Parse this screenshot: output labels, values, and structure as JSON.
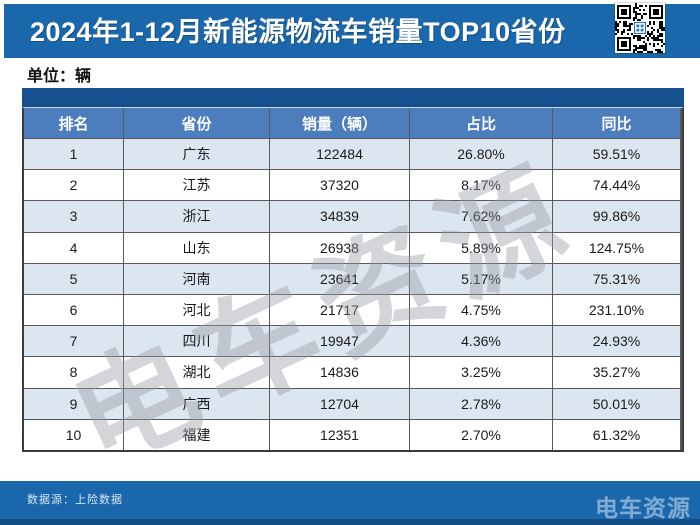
{
  "title_bar": {
    "title": "2024年1-12月新能源物流车销量TOP10省份",
    "qr_icon": "qr-code"
  },
  "unit_label": "单位：辆",
  "chart_data": {
    "type": "table",
    "title": "2024年1-12月新能源物流车销量TOP10省份",
    "unit": "辆",
    "columns": [
      "排名",
      "省份",
      "销量（辆）",
      "占比",
      "同比"
    ],
    "rows": [
      [
        "1",
        "广东",
        "122484",
        "26.80%",
        "59.51%"
      ],
      [
        "2",
        "江苏",
        "37320",
        "8.17%",
        "74.44%"
      ],
      [
        "3",
        "浙江",
        "34839",
        "7.62%",
        "99.86%"
      ],
      [
        "4",
        "山东",
        "26938",
        "5.89%",
        "124.75%"
      ],
      [
        "5",
        "河南",
        "23641",
        "5.17%",
        "75.31%"
      ],
      [
        "6",
        "河北",
        "21717",
        "4.75%",
        "231.10%"
      ],
      [
        "7",
        "四川",
        "19947",
        "4.36%",
        "24.93%"
      ],
      [
        "8",
        "湖北",
        "14836",
        "3.25%",
        "35.27%"
      ],
      [
        "9",
        "广西",
        "12704",
        "2.78%",
        "50.01%"
      ],
      [
        "10",
        "福建",
        "12351",
        "2.70%",
        "61.32%"
      ]
    ],
    "source": "数据源：上险数据"
  },
  "footer": {
    "source_label": "数据源：上险数据",
    "brand": "电车资源"
  },
  "watermark_text": "电车资源",
  "colors": {
    "title_bar_blue": "#1b67ac",
    "band_blue": "#17508e",
    "header_row_blue": "#4c7dbc",
    "row_alt_blue": "#dce6f1",
    "border_gray": "#3c3c3c",
    "footer_strip_blue": "#134e86",
    "qr_center_blue": "#2e75b6"
  }
}
